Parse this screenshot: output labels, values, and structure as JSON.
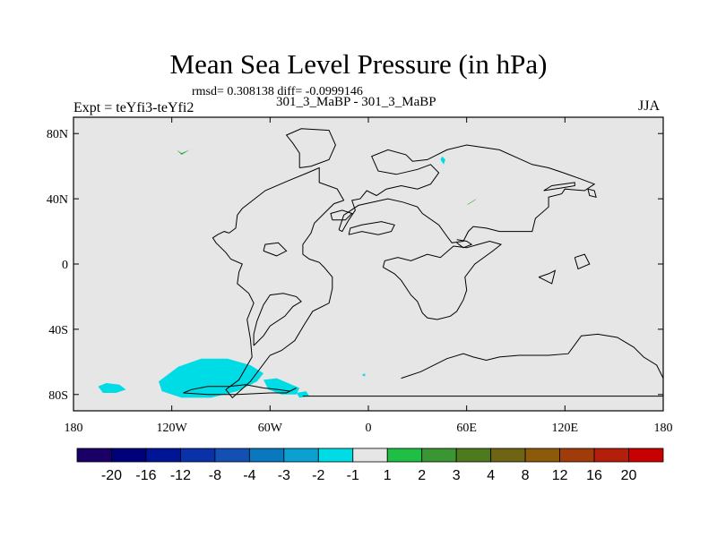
{
  "colors": {
    "background": "#e6e6e6",
    "coast": "#000000",
    "negative_anomaly": "#00dce6",
    "positive_anomaly": "#1fa83c"
  },
  "chart_data": {
    "type": "heatmap",
    "title": "Mean Sea Level Pressure (in hPa)",
    "stats": "rmsd= 0.308138 diff= -0.0999146",
    "runs": "301_3_MaBP - 301_3_MaBP",
    "experiment": "Expt = teYfi3-teYfi2",
    "season": "JJA",
    "projection": "cylindrical equidistant, centered on 180",
    "xlim": [
      180,
      540
    ],
    "ylim": [
      -90,
      90
    ],
    "x_ticks": [
      {
        "lon": 180,
        "label": "180"
      },
      {
        "lon": 240,
        "label": "120W"
      },
      {
        "lon": 300,
        "label": "60W"
      },
      {
        "lon": 360,
        "label": "0"
      },
      {
        "lon": 420,
        "label": "60E"
      },
      {
        "lon": 480,
        "label": "120E"
      },
      {
        "lon": 540,
        "label": "180"
      }
    ],
    "y_ticks": [
      {
        "lat": 80,
        "label": "80N"
      },
      {
        "lat": 40,
        "label": "40N"
      },
      {
        "lat": 0,
        "label": "0"
      },
      {
        "lat": -40,
        "label": "40S"
      },
      {
        "lat": -80,
        "label": "80S"
      }
    ],
    "colorbar": {
      "labels": [
        "-20",
        "-16",
        "-12",
        "-8",
        "-4",
        "-3",
        "-2",
        "-1",
        "1",
        "2",
        "3",
        "4",
        "8",
        "12",
        "16",
        "20"
      ],
      "colors": [
        "#1a0066",
        "#00007a",
        "#001496",
        "#0a32a8",
        "#1450b4",
        "#0a78be",
        "#0aa0d2",
        "#00dce6",
        "#e6e6e6",
        "#1fbf46",
        "#3a9632",
        "#4e7a1e",
        "#6e6414",
        "#8c5a0a",
        "#a03c0a",
        "#b41e0a",
        "#c80000"
      ]
    },
    "anomaly_regions": [
      {
        "name": "southern-ocean-pacific-low",
        "value": "-1 to -2",
        "color": "#00dce6",
        "points": [
          [
            232,
            -72
          ],
          [
            244,
            -63
          ],
          [
            258,
            -58
          ],
          [
            274,
            -58
          ],
          [
            288,
            -62
          ],
          [
            296,
            -67
          ],
          [
            292,
            -72
          ],
          [
            280,
            -78
          ],
          [
            264,
            -82
          ],
          [
            246,
            -82
          ],
          [
            234,
            -78
          ]
        ]
      },
      {
        "name": "south-pacific-west-low",
        "value": "-1 to -2",
        "color": "#00dce6",
        "points": [
          [
            195,
            -75
          ],
          [
            200,
            -73
          ],
          [
            208,
            -74
          ],
          [
            212,
            -77
          ],
          [
            206,
            -79
          ],
          [
            198,
            -79
          ]
        ]
      },
      {
        "name": "drake-passage-low",
        "value": "-1 to -2",
        "color": "#00dce6",
        "points": [
          [
            296,
            -71
          ],
          [
            304,
            -70
          ],
          [
            311,
            -73
          ],
          [
            318,
            -76
          ],
          [
            316,
            -80
          ],
          [
            307,
            -80
          ],
          [
            299,
            -77
          ]
        ]
      },
      {
        "name": "weddell-sea-low",
        "value": "-1 to -2",
        "color": "#00dce6",
        "points": [
          [
            316,
            -79
          ],
          [
            322,
            -78
          ],
          [
            324,
            -81
          ],
          [
            318,
            -82
          ]
        ]
      },
      {
        "name": "arctic-russia-low",
        "value": "-1 to -2",
        "color": "#00dce6",
        "points": [
          [
            404,
            64
          ],
          [
            406,
            61
          ],
          [
            407,
            64
          ],
          [
            405,
            66
          ]
        ]
      },
      {
        "name": "atlantic-spot-low",
        "value": "-1 to -2",
        "color": "#00dce6",
        "points": [
          [
            356,
            -68
          ],
          [
            358,
            -67
          ],
          [
            358,
            -69
          ]
        ]
      },
      {
        "name": "arctic-pacific-high",
        "value": "1 to 2",
        "color": "#1fa83c",
        "points": [
          [
            243,
            70
          ],
          [
            246,
            67
          ],
          [
            251,
            70
          ],
          [
            246,
            68
          ]
        ]
      },
      {
        "name": "central-asia-high",
        "value": "1 to 2",
        "color": "#1fa83c",
        "points": [
          [
            420,
            36
          ],
          [
            425,
            39
          ],
          [
            426,
            40
          ],
          [
            421,
            37
          ]
        ]
      }
    ],
    "coastlines": [
      {
        "name": "americas-outline",
        "points": [
          [
            275,
            19
          ],
          [
            279,
            22
          ],
          [
            280,
            30
          ],
          [
            283,
            34
          ],
          [
            297,
            45
          ],
          [
            311,
            51
          ],
          [
            323,
            56
          ],
          [
            330,
            59
          ],
          [
            330,
            50
          ],
          [
            341,
            46
          ],
          [
            345,
            39
          ],
          [
            339,
            37
          ],
          [
            333,
            31
          ],
          [
            327,
            25
          ],
          [
            325,
            19
          ],
          [
            320,
            12
          ],
          [
            320,
            6
          ],
          [
            324,
            3
          ],
          [
            330,
            1
          ],
          [
            333,
            -2
          ],
          [
            338,
            -8
          ],
          [
            338,
            -15
          ],
          [
            336,
            -24
          ],
          [
            326,
            -29
          ],
          [
            321,
            -37
          ],
          [
            315,
            -47
          ],
          [
            307,
            -53
          ],
          [
            300,
            -56
          ],
          [
            288,
            -72
          ],
          [
            277,
            -82
          ],
          [
            273,
            -77
          ],
          [
            281,
            -71
          ],
          [
            289,
            -57
          ],
          [
            288,
            -46
          ],
          [
            286,
            -34
          ],
          [
            290,
            -24
          ],
          [
            287,
            -18
          ],
          [
            280,
            -12
          ],
          [
            281,
            -5
          ],
          [
            283,
            0
          ],
          [
            276,
            3
          ],
          [
            273,
            7
          ],
          [
            267,
            13
          ],
          [
            265,
            16
          ],
          [
            268,
            18
          ],
          [
            272,
            20
          ],
          [
            275,
            19
          ]
        ]
      },
      {
        "name": "greenland",
        "points": [
          [
            318,
            59
          ],
          [
            325,
            60
          ],
          [
            336,
            64
          ],
          [
            340,
            73
          ],
          [
            336,
            82
          ],
          [
            319,
            83
          ],
          [
            310,
            79
          ],
          [
            314,
            74
          ],
          [
            318,
            68
          ],
          [
            318,
            59
          ]
        ]
      },
      {
        "name": "south-america-inner",
        "points": [
          [
            290,
            -50
          ],
          [
            296,
            -44
          ],
          [
            300,
            -38
          ],
          [
            309,
            -32
          ],
          [
            314,
            -26
          ],
          [
            319,
            -23
          ],
          [
            316,
            -20
          ],
          [
            308,
            -18
          ],
          [
            300,
            -19
          ],
          [
            296,
            -25
          ],
          [
            292,
            -35
          ],
          [
            290,
            -43
          ],
          [
            290,
            -50
          ]
        ]
      },
      {
        "name": "africa-eurasia-outline",
        "points": [
          [
            342,
            21
          ],
          [
            345,
            30
          ],
          [
            354,
            36
          ],
          [
            363,
            38
          ],
          [
            372,
            40
          ],
          [
            381,
            38
          ],
          [
            390,
            35
          ],
          [
            393,
            31
          ],
          [
            403,
            24
          ],
          [
            408,
            17
          ],
          [
            411,
            13
          ],
          [
            418,
            14
          ],
          [
            421,
            20
          ],
          [
            424,
            23
          ],
          [
            432,
            22
          ],
          [
            440,
            20
          ],
          [
            450,
            20
          ],
          [
            460,
            20
          ],
          [
            462,
            28
          ],
          [
            470,
            35
          ],
          [
            470,
            41
          ],
          [
            478,
            43
          ],
          [
            480,
            46
          ],
          [
            492,
            45
          ],
          [
            498,
            49
          ],
          [
            490,
            52
          ],
          [
            479,
            56
          ],
          [
            470,
            59
          ],
          [
            460,
            61
          ],
          [
            440,
            70
          ],
          [
            420,
            73
          ],
          [
            408,
            70
          ],
          [
            396,
            64
          ],
          [
            387,
            63
          ],
          [
            383,
            67
          ],
          [
            372,
            70
          ],
          [
            362,
            66
          ],
          [
            366,
            57
          ],
          [
            377,
            55
          ],
          [
            390,
            58
          ],
          [
            398,
            61
          ],
          [
            403,
            56
          ],
          [
            398,
            49
          ],
          [
            390,
            46
          ],
          [
            380,
            48
          ],
          [
            371,
            46
          ],
          [
            365,
            42
          ],
          [
            359,
            45
          ],
          [
            355,
            40
          ],
          [
            350,
            39
          ],
          [
            352,
            33
          ],
          [
            348,
            27
          ],
          [
            344,
            20
          ],
          [
            342,
            21
          ]
        ]
      },
      {
        "name": "africa-south-loop",
        "points": [
          [
            369,
            -2
          ],
          [
            376,
            -6
          ],
          [
            380,
            -10
          ],
          [
            386,
            -19
          ],
          [
            390,
            -23
          ],
          [
            393,
            -30
          ],
          [
            396,
            -33
          ],
          [
            402,
            -34
          ],
          [
            410,
            -32
          ],
          [
            414,
            -29
          ],
          [
            418,
            -22
          ],
          [
            420,
            -16
          ],
          [
            419,
            -8
          ],
          [
            425,
            0
          ],
          [
            436,
            8
          ],
          [
            441,
            12
          ],
          [
            434,
            14
          ],
          [
            427,
            12
          ],
          [
            420,
            10
          ],
          [
            412,
            11
          ],
          [
            404,
            4
          ],
          [
            396,
            6
          ],
          [
            386,
            2
          ],
          [
            378,
            4
          ],
          [
            370,
            2
          ],
          [
            369,
            -2
          ]
        ]
      },
      {
        "name": "antarctic-east-coast",
        "points": [
          [
            380,
            -70
          ],
          [
            392,
            -66
          ],
          [
            408,
            -58
          ],
          [
            418,
            -55
          ],
          [
            424,
            -57
          ],
          [
            432,
            -59
          ],
          [
            440,
            -57
          ],
          [
            452,
            -56
          ],
          [
            470,
            -56
          ],
          [
            482,
            -55
          ],
          [
            490,
            -44
          ],
          [
            500,
            -43
          ],
          [
            512,
            -45
          ],
          [
            522,
            -51
          ],
          [
            528,
            -57
          ],
          [
            536,
            -62
          ],
          [
            540,
            -70
          ],
          [
            540,
            -81
          ],
          [
            360,
            -81
          ],
          [
            320,
            -81
          ]
        ]
      },
      {
        "name": "antarctic-west-coast",
        "points": [
          [
            316,
            -76
          ],
          [
            312,
            -78
          ],
          [
            305,
            -77
          ],
          [
            296,
            -76
          ],
          [
            285,
            -74
          ],
          [
            275,
            -75
          ],
          [
            262,
            -75
          ],
          [
            252,
            -77
          ],
          [
            247,
            -79
          ],
          [
            262,
            -80
          ],
          [
            280,
            -80
          ],
          [
            300,
            -79
          ],
          [
            310,
            -79
          ],
          [
            316,
            -76
          ]
        ]
      },
      {
        "name": "hudson-island",
        "points": [
          [
            296,
            8
          ],
          [
            304,
            5
          ],
          [
            310,
            8
          ],
          [
            305,
            13
          ],
          [
            297,
            12
          ],
          [
            296,
            8
          ]
        ]
      },
      {
        "name": "iceland",
        "points": [
          [
            338,
            27
          ],
          [
            346,
            27
          ],
          [
            350,
            31
          ],
          [
            344,
            33
          ],
          [
            337,
            31
          ],
          [
            338,
            27
          ]
        ]
      },
      {
        "name": "japan-arc",
        "points": [
          [
            467,
            45
          ],
          [
            480,
            47
          ],
          [
            486,
            48
          ],
          [
            486,
            50
          ],
          [
            472,
            48
          ],
          [
            467,
            45
          ]
        ]
      },
      {
        "name": "southeast-asia",
        "points": [
          [
            464,
            -8
          ],
          [
            470,
            -6
          ],
          [
            474,
            -4
          ],
          [
            472,
            -12
          ],
          [
            464,
            -8
          ]
        ]
      },
      {
        "name": "indonesia",
        "points": [
          [
            486,
            4
          ],
          [
            492,
            6
          ],
          [
            495,
            0
          ],
          [
            488,
            -3
          ],
          [
            486,
            4
          ]
        ]
      },
      {
        "name": "med-basin",
        "points": [
          [
            348,
            18
          ],
          [
            356,
            20
          ],
          [
            366,
            18
          ],
          [
            374,
            20
          ],
          [
            376,
            24
          ],
          [
            368,
            26
          ],
          [
            356,
            24
          ],
          [
            349,
            22
          ],
          [
            348,
            18
          ]
        ]
      },
      {
        "name": "black-caspian",
        "points": [
          [
            414,
            15
          ],
          [
            420,
            14
          ],
          [
            423,
            12
          ],
          [
            418,
            10
          ],
          [
            414,
            13
          ]
        ]
      },
      {
        "name": "kamchatka",
        "points": [
          [
            494,
            46
          ],
          [
            498,
            45
          ],
          [
            499,
            41
          ],
          [
            495,
            42
          ],
          [
            494,
            46
          ]
        ]
      }
    ]
  }
}
